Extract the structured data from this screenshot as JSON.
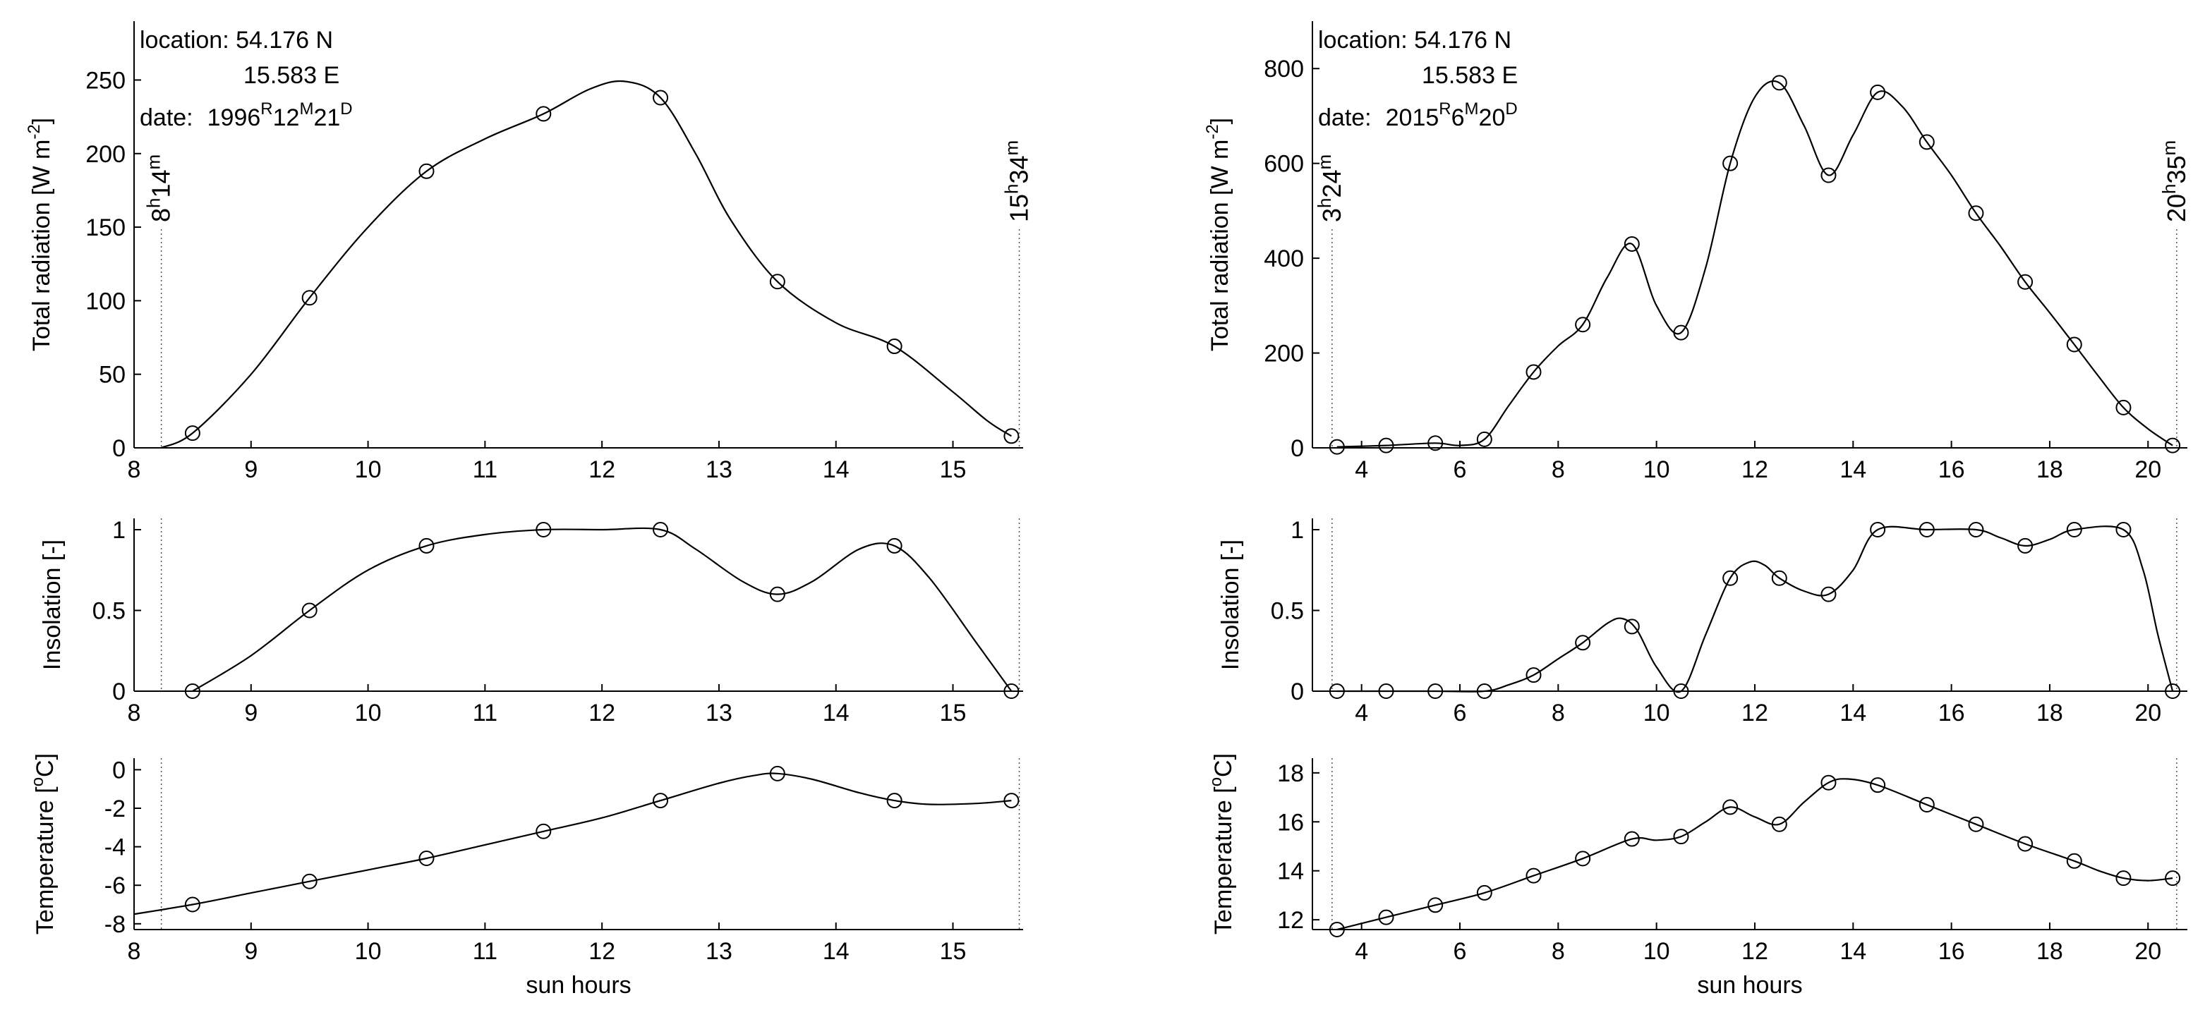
{
  "chart_data": [
    {
      "type": "line",
      "panel": "left-top",
      "ylabel": "Total radiation [W m",
      "ylabel_sup": "-2",
      "ylabel_end": "]",
      "xlim": [
        8,
        15.6
      ],
      "ylim": [
        0,
        290
      ],
      "xticks": [
        "8",
        "9",
        "10",
        "11",
        "12",
        "13",
        "14",
        "15"
      ],
      "yticks": [
        "0",
        "50",
        "100",
        "150",
        "200",
        "250"
      ],
      "x": [
        8.5,
        9.5,
        10.5,
        11.5,
        12.5,
        13.5,
        14.5,
        15.5
      ],
      "y": [
        10,
        102,
        188,
        227,
        238,
        113,
        69,
        8
      ],
      "curve_x": [
        8.23,
        8.5,
        9.0,
        9.5,
        10.0,
        10.5,
        11.0,
        11.5,
        11.9,
        12.2,
        12.5,
        12.8,
        13.1,
        13.5,
        14.0,
        14.5,
        15.0,
        15.3,
        15.5
      ],
      "curve_y": [
        0,
        10,
        50,
        102,
        150,
        188,
        210,
        227,
        244,
        249,
        238,
        200,
        155,
        113,
        85,
        69,
        38,
        18,
        8
      ],
      "annotation": {
        "loc_label": "location: 54.176 N",
        "lon_label": "15.583 E",
        "date_prefix": "date:",
        "y_val": "1996",
        "y_unit": "R",
        "m_val": "12",
        "m_unit": "M",
        "d_val": "21",
        "d_unit": "D"
      },
      "sunrise": {
        "h": "8",
        "m": "14",
        "x": 8.233
      },
      "sunset": {
        "h": "15",
        "m": "34",
        "x": 15.567
      }
    },
    {
      "type": "line",
      "panel": "left-middle",
      "ylabel": "Insolation [-]",
      "xlim": [
        8,
        15.6
      ],
      "ylim": [
        0,
        1.07
      ],
      "xticks": [
        "8",
        "9",
        "10",
        "11",
        "12",
        "13",
        "14",
        "15"
      ],
      "yticks": [
        "0",
        "0.5",
        "1"
      ],
      "x": [
        8.5,
        9.5,
        10.5,
        11.5,
        12.5,
        13.5,
        14.5,
        15.5
      ],
      "y": [
        0,
        0.5,
        0.9,
        1.0,
        1.0,
        0.6,
        0.9,
        0
      ],
      "curve_x": [
        8.5,
        9.0,
        9.5,
        10.0,
        10.5,
        11.0,
        11.5,
        12.0,
        12.5,
        12.8,
        13.2,
        13.5,
        13.8,
        14.2,
        14.5,
        14.8,
        15.2,
        15.5
      ],
      "curve_y": [
        0,
        0.22,
        0.5,
        0.75,
        0.9,
        0.97,
        1.0,
        1.0,
        1.0,
        0.88,
        0.68,
        0.6,
        0.68,
        0.88,
        0.9,
        0.7,
        0.3,
        0
      ],
      "sunrise_x": 8.233,
      "sunset_x": 15.567
    },
    {
      "type": "line",
      "panel": "left-bottom",
      "ylabel": "Temperature [",
      "ylabel_sup": "o",
      "ylabel_end": "C]",
      "xlabel": "sun hours",
      "xlim": [
        8,
        15.6
      ],
      "ylim": [
        -8.3,
        0.6
      ],
      "xticks": [
        "8",
        "9",
        "10",
        "11",
        "12",
        "13",
        "14",
        "15"
      ],
      "yticks": [
        "-8",
        "-6",
        "-4",
        "-2",
        "0"
      ],
      "x": [
        8.5,
        9.5,
        10.5,
        11.5,
        12.5,
        13.5,
        14.5,
        15.5
      ],
      "y": [
        -7.0,
        -5.8,
        -4.6,
        -3.2,
        -1.6,
        -0.2,
        -1.6,
        -1.6
      ],
      "curve_x": [
        8.0,
        8.5,
        9.0,
        9.5,
        10.0,
        10.5,
        11.0,
        11.5,
        12.0,
        12.5,
        13.0,
        13.3,
        13.5,
        13.8,
        14.2,
        14.5,
        14.8,
        15.2,
        15.5
      ],
      "curve_y": [
        -7.5,
        -7.0,
        -6.4,
        -5.8,
        -5.2,
        -4.6,
        -3.9,
        -3.2,
        -2.5,
        -1.6,
        -0.7,
        -0.3,
        -0.2,
        -0.5,
        -1.2,
        -1.6,
        -1.8,
        -1.75,
        -1.6
      ],
      "sunrise_x": 8.233,
      "sunset_x": 15.567
    },
    {
      "type": "line",
      "panel": "right-top",
      "ylabel": "Total radiation [W m",
      "ylabel_sup": "-2",
      "ylabel_end": "]",
      "xlim": [
        3,
        20.8
      ],
      "ylim": [
        0,
        900
      ],
      "xticks": [
        "4",
        "6",
        "8",
        "10",
        "12",
        "14",
        "16",
        "18",
        "20"
      ],
      "yticks": [
        "0",
        "200",
        "400",
        "600",
        "800"
      ],
      "x": [
        3.5,
        4.5,
        5.5,
        6.5,
        7.5,
        8.5,
        9.5,
        10.5,
        11.5,
        12.5,
        13.5,
        14.5,
        15.5,
        16.5,
        17.5,
        18.5,
        19.5,
        20.5
      ],
      "y": [
        2,
        5,
        10,
        18,
        160,
        260,
        430,
        243,
        600,
        770,
        575,
        750,
        645,
        495,
        350,
        218,
        85,
        5
      ],
      "curve_x": [
        3.5,
        4.5,
        5.5,
        6.0,
        6.5,
        7.0,
        7.5,
        8.0,
        8.5,
        9.0,
        9.5,
        10.0,
        10.5,
        11.0,
        11.5,
        12.0,
        12.5,
        13.0,
        13.5,
        14.0,
        14.5,
        15.0,
        15.5,
        16.0,
        16.5,
        17.0,
        17.5,
        18.0,
        18.5,
        19.0,
        19.5,
        20.0,
        20.5
      ],
      "curve_y": [
        2,
        5,
        10,
        5,
        18,
        90,
        160,
        215,
        260,
        360,
        430,
        300,
        243,
        380,
        600,
        740,
        770,
        680,
        575,
        660,
        750,
        720,
        645,
        575,
        495,
        425,
        350,
        285,
        218,
        150,
        85,
        40,
        5
      ],
      "annotation": {
        "loc_label": "location: 54.176 N",
        "lon_label": "15.583 E",
        "date_prefix": "date:",
        "y_val": "2015",
        "y_unit": "R",
        "m_val": "6",
        "m_unit": "M",
        "d_val": "20",
        "d_unit": "D"
      },
      "sunrise": {
        "h": "3",
        "m": "24",
        "x": 3.4
      },
      "sunset": {
        "h": "20",
        "m": "35",
        "x": 20.583
      }
    },
    {
      "type": "line",
      "panel": "right-middle",
      "ylabel": "Insolation [-]",
      "xlim": [
        3,
        20.8
      ],
      "ylim": [
        0,
        1.07
      ],
      "xticks": [
        "4",
        "6",
        "8",
        "10",
        "12",
        "14",
        "16",
        "18",
        "20"
      ],
      "yticks": [
        "0",
        "0.5",
        "1"
      ],
      "x": [
        3.5,
        4.5,
        5.5,
        6.5,
        7.5,
        8.5,
        9.5,
        10.5,
        11.5,
        12.5,
        13.5,
        14.5,
        15.5,
        16.5,
        17.5,
        18.5,
        19.5,
        20.5
      ],
      "y": [
        0,
        0,
        0,
        0,
        0.1,
        0.3,
        0.4,
        0,
        0.7,
        0.7,
        0.6,
        1.0,
        1.0,
        1.0,
        0.9,
        1.0,
        1.0,
        0
      ],
      "curve_x": [
        3.5,
        4.5,
        5.5,
        6.5,
        7.0,
        7.5,
        8.0,
        8.5,
        9.0,
        9.3,
        9.6,
        10.0,
        10.5,
        11.0,
        11.5,
        11.9,
        12.2,
        12.5,
        13.0,
        13.5,
        14.0,
        14.5,
        15.5,
        16.5,
        17.0,
        17.5,
        18.0,
        18.5,
        19.5,
        19.9,
        20.2,
        20.5
      ],
      "curve_y": [
        0,
        0,
        0,
        0,
        0.04,
        0.1,
        0.2,
        0.3,
        0.42,
        0.45,
        0.38,
        0.15,
        0,
        0.35,
        0.7,
        0.8,
        0.78,
        0.7,
        0.62,
        0.6,
        0.75,
        1.0,
        1.0,
        1.0,
        0.95,
        0.9,
        0.94,
        1.0,
        1.0,
        0.75,
        0.35,
        0
      ],
      "sunrise_x": 3.4,
      "sunset_x": 20.583
    },
    {
      "type": "line",
      "panel": "right-bottom",
      "ylabel": "Temperature [",
      "ylabel_sup": "o",
      "ylabel_end": "C]",
      "xlabel": "sun hours",
      "xlim": [
        3,
        20.8
      ],
      "ylim": [
        11.6,
        18.6
      ],
      "xticks": [
        "4",
        "6",
        "8",
        "10",
        "12",
        "14",
        "16",
        "18",
        "20"
      ],
      "yticks": [
        "12",
        "14",
        "16",
        "18"
      ],
      "x": [
        3.5,
        4.5,
        5.5,
        6.5,
        7.5,
        8.5,
        9.5,
        10.5,
        11.5,
        12.5,
        13.5,
        14.5,
        15.5,
        16.5,
        17.5,
        18.5,
        19.5,
        20.5
      ],
      "y": [
        11.6,
        12.1,
        12.6,
        13.1,
        13.8,
        14.5,
        15.3,
        15.4,
        16.6,
        15.9,
        17.6,
        17.5,
        16.7,
        15.9,
        15.1,
        14.4,
        13.7,
        13.7
      ],
      "curve_x": [
        3.5,
        4.5,
        5.5,
        6.5,
        7.5,
        8.5,
        9.5,
        10.0,
        10.5,
        11.0,
        11.5,
        12.0,
        12.5,
        13.0,
        13.5,
        13.9,
        14.5,
        15.5,
        16.5,
        17.5,
        18.5,
        19.0,
        19.5,
        20.0,
        20.5
      ],
      "curve_y": [
        11.6,
        12.1,
        12.6,
        13.1,
        13.8,
        14.5,
        15.3,
        15.25,
        15.4,
        16.0,
        16.6,
        16.2,
        15.9,
        16.8,
        17.6,
        17.75,
        17.5,
        16.7,
        15.9,
        15.1,
        14.4,
        14.0,
        13.7,
        13.6,
        13.7
      ],
      "sunrise_x": 3.4,
      "sunset_x": 20.583
    }
  ]
}
